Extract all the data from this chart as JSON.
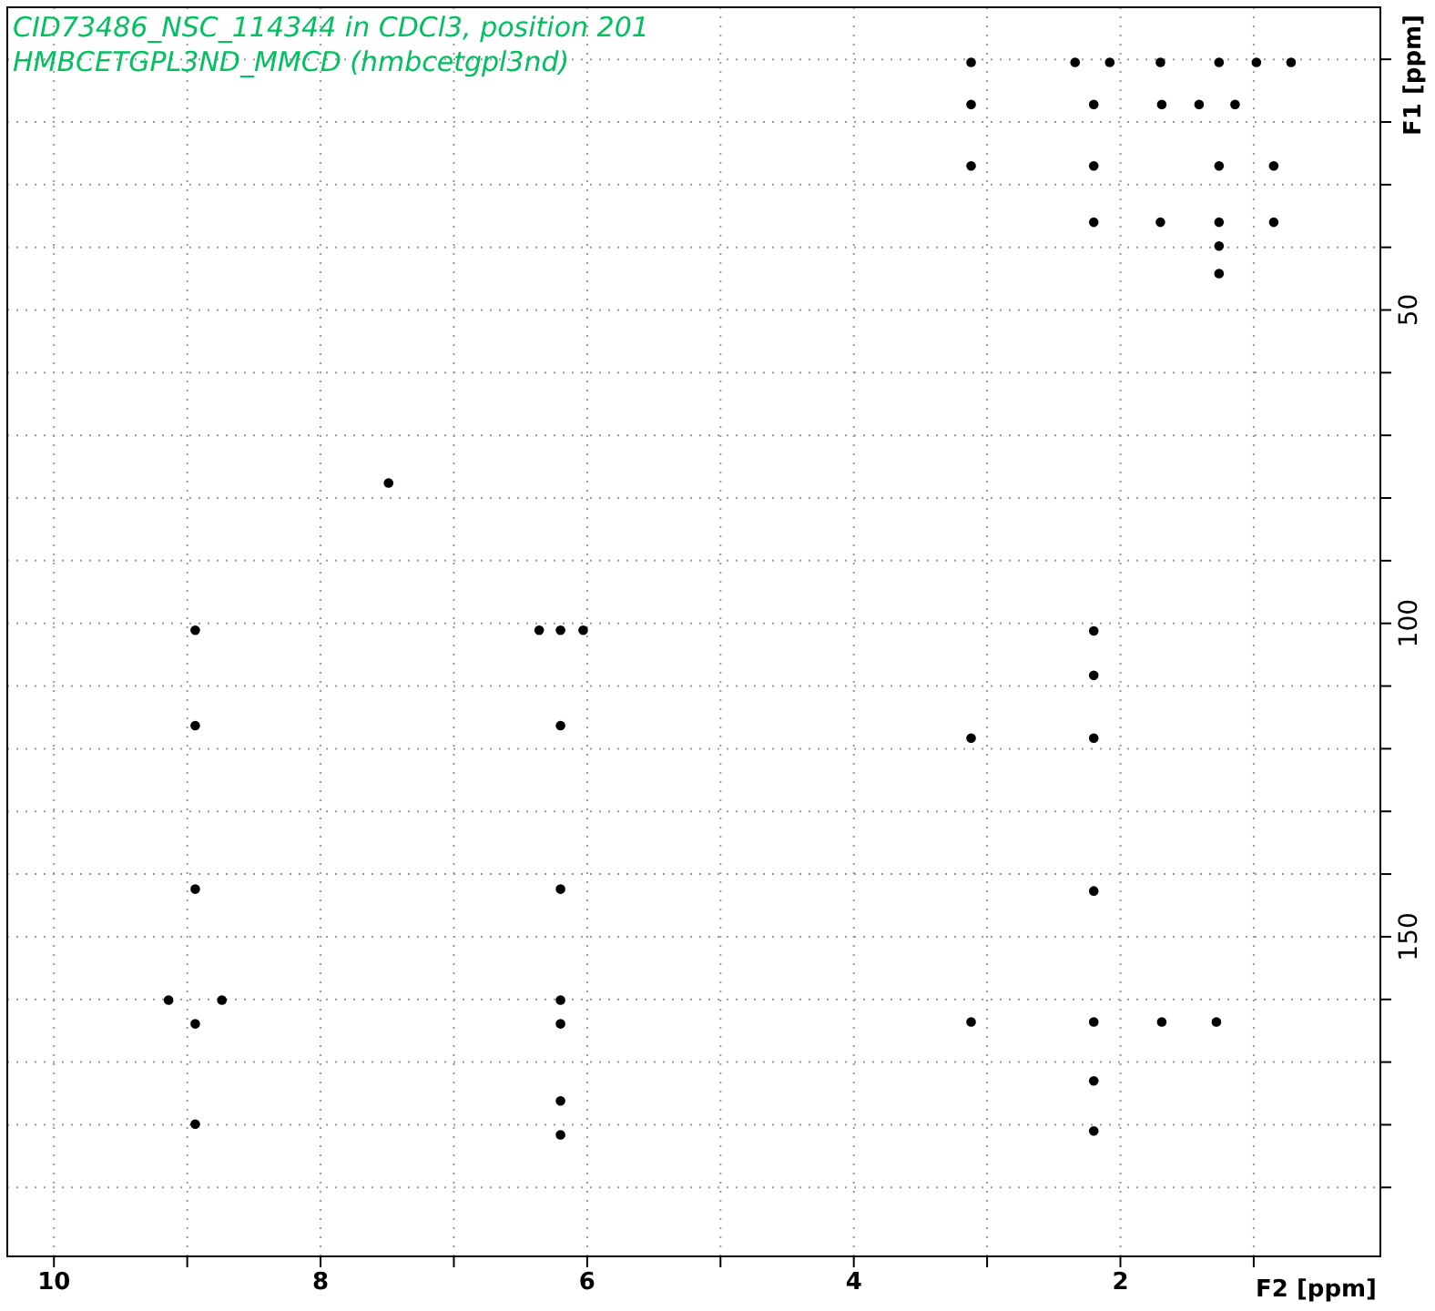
{
  "chart_data": {
    "type": "scatter",
    "title": "CID73486_NSC_114344 in CDCl3, position 201",
    "subtitle": "HMBCETGPL3ND_MMCD (hmbcetgpl3nd)",
    "xlabel": "F2 [ppm]",
    "ylabel": "F1 [ppm]",
    "xlim": [
      10.35,
      0.05
    ],
    "ylim": [
      201,
      1.7
    ],
    "xticks": [
      10,
      {
        "value": 9,
        "label": null
      },
      8,
      {
        "value": 7,
        "label": null
      },
      6,
      {
        "value": 5,
        "label": null
      },
      4,
      {
        "value": 3,
        "label": null
      },
      2,
      {
        "value": 1,
        "label": null
      }
    ],
    "yticks": [
      {
        "value": 10,
        "label": null
      },
      {
        "value": 20,
        "label": null
      },
      {
        "value": 30,
        "label": null
      },
      {
        "value": 40,
        "label": null
      },
      50,
      {
        "value": 60,
        "label": null
      },
      {
        "value": 70,
        "label": null
      },
      {
        "value": 80,
        "label": null
      },
      {
        "value": 90,
        "label": null
      },
      100,
      {
        "value": 110,
        "label": null
      },
      {
        "value": 120,
        "label": null
      },
      {
        "value": 130,
        "label": null
      },
      {
        "value": 140,
        "label": null
      },
      150,
      {
        "value": 160,
        "label": null
      },
      {
        "value": 170,
        "label": null
      },
      {
        "value": 180,
        "label": null
      },
      {
        "value": 190,
        "label": null
      }
    ],
    "grid": true,
    "marker": "circle",
    "series": [
      {
        "color": "#000000",
        "x": [
          3.12,
          2.34,
          2.08,
          1.7,
          1.26,
          0.98,
          0.72,
          3.12,
          2.2,
          1.69,
          1.41,
          1.14,
          3.12,
          2.2,
          1.26,
          0.85,
          2.2,
          1.7,
          1.26,
          0.85,
          1.26,
          1.26,
          7.49,
          8.94,
          6.36,
          6.2,
          6.03,
          8.94,
          6.2,
          8.94,
          6.2,
          9.14,
          8.74,
          6.2,
          8.94,
          6.2,
          6.2,
          8.94,
          6.2,
          2.2,
          2.2,
          3.12,
          2.2,
          2.2,
          3.12,
          2.2,
          1.69,
          1.28,
          2.2,
          2.2
        ],
        "values": [
          10.5,
          10.5,
          10.5,
          10.5,
          10.5,
          10.5,
          10.5,
          17.2,
          17.2,
          17.2,
          17.2,
          17.2,
          27,
          27,
          27,
          27,
          36,
          36,
          36,
          36,
          39.8,
          44.2,
          77.6,
          101.1,
          101.1,
          101.1,
          101.1,
          116.3,
          116.3,
          142.4,
          142.4,
          160.1,
          160.1,
          160.1,
          163.9,
          163.9,
          176.2,
          179.9,
          181.6,
          101.2,
          108.3,
          118.3,
          118.3,
          142.7,
          163.6,
          163.6,
          163.6,
          163.6,
          173,
          181
        ]
      }
    ]
  }
}
